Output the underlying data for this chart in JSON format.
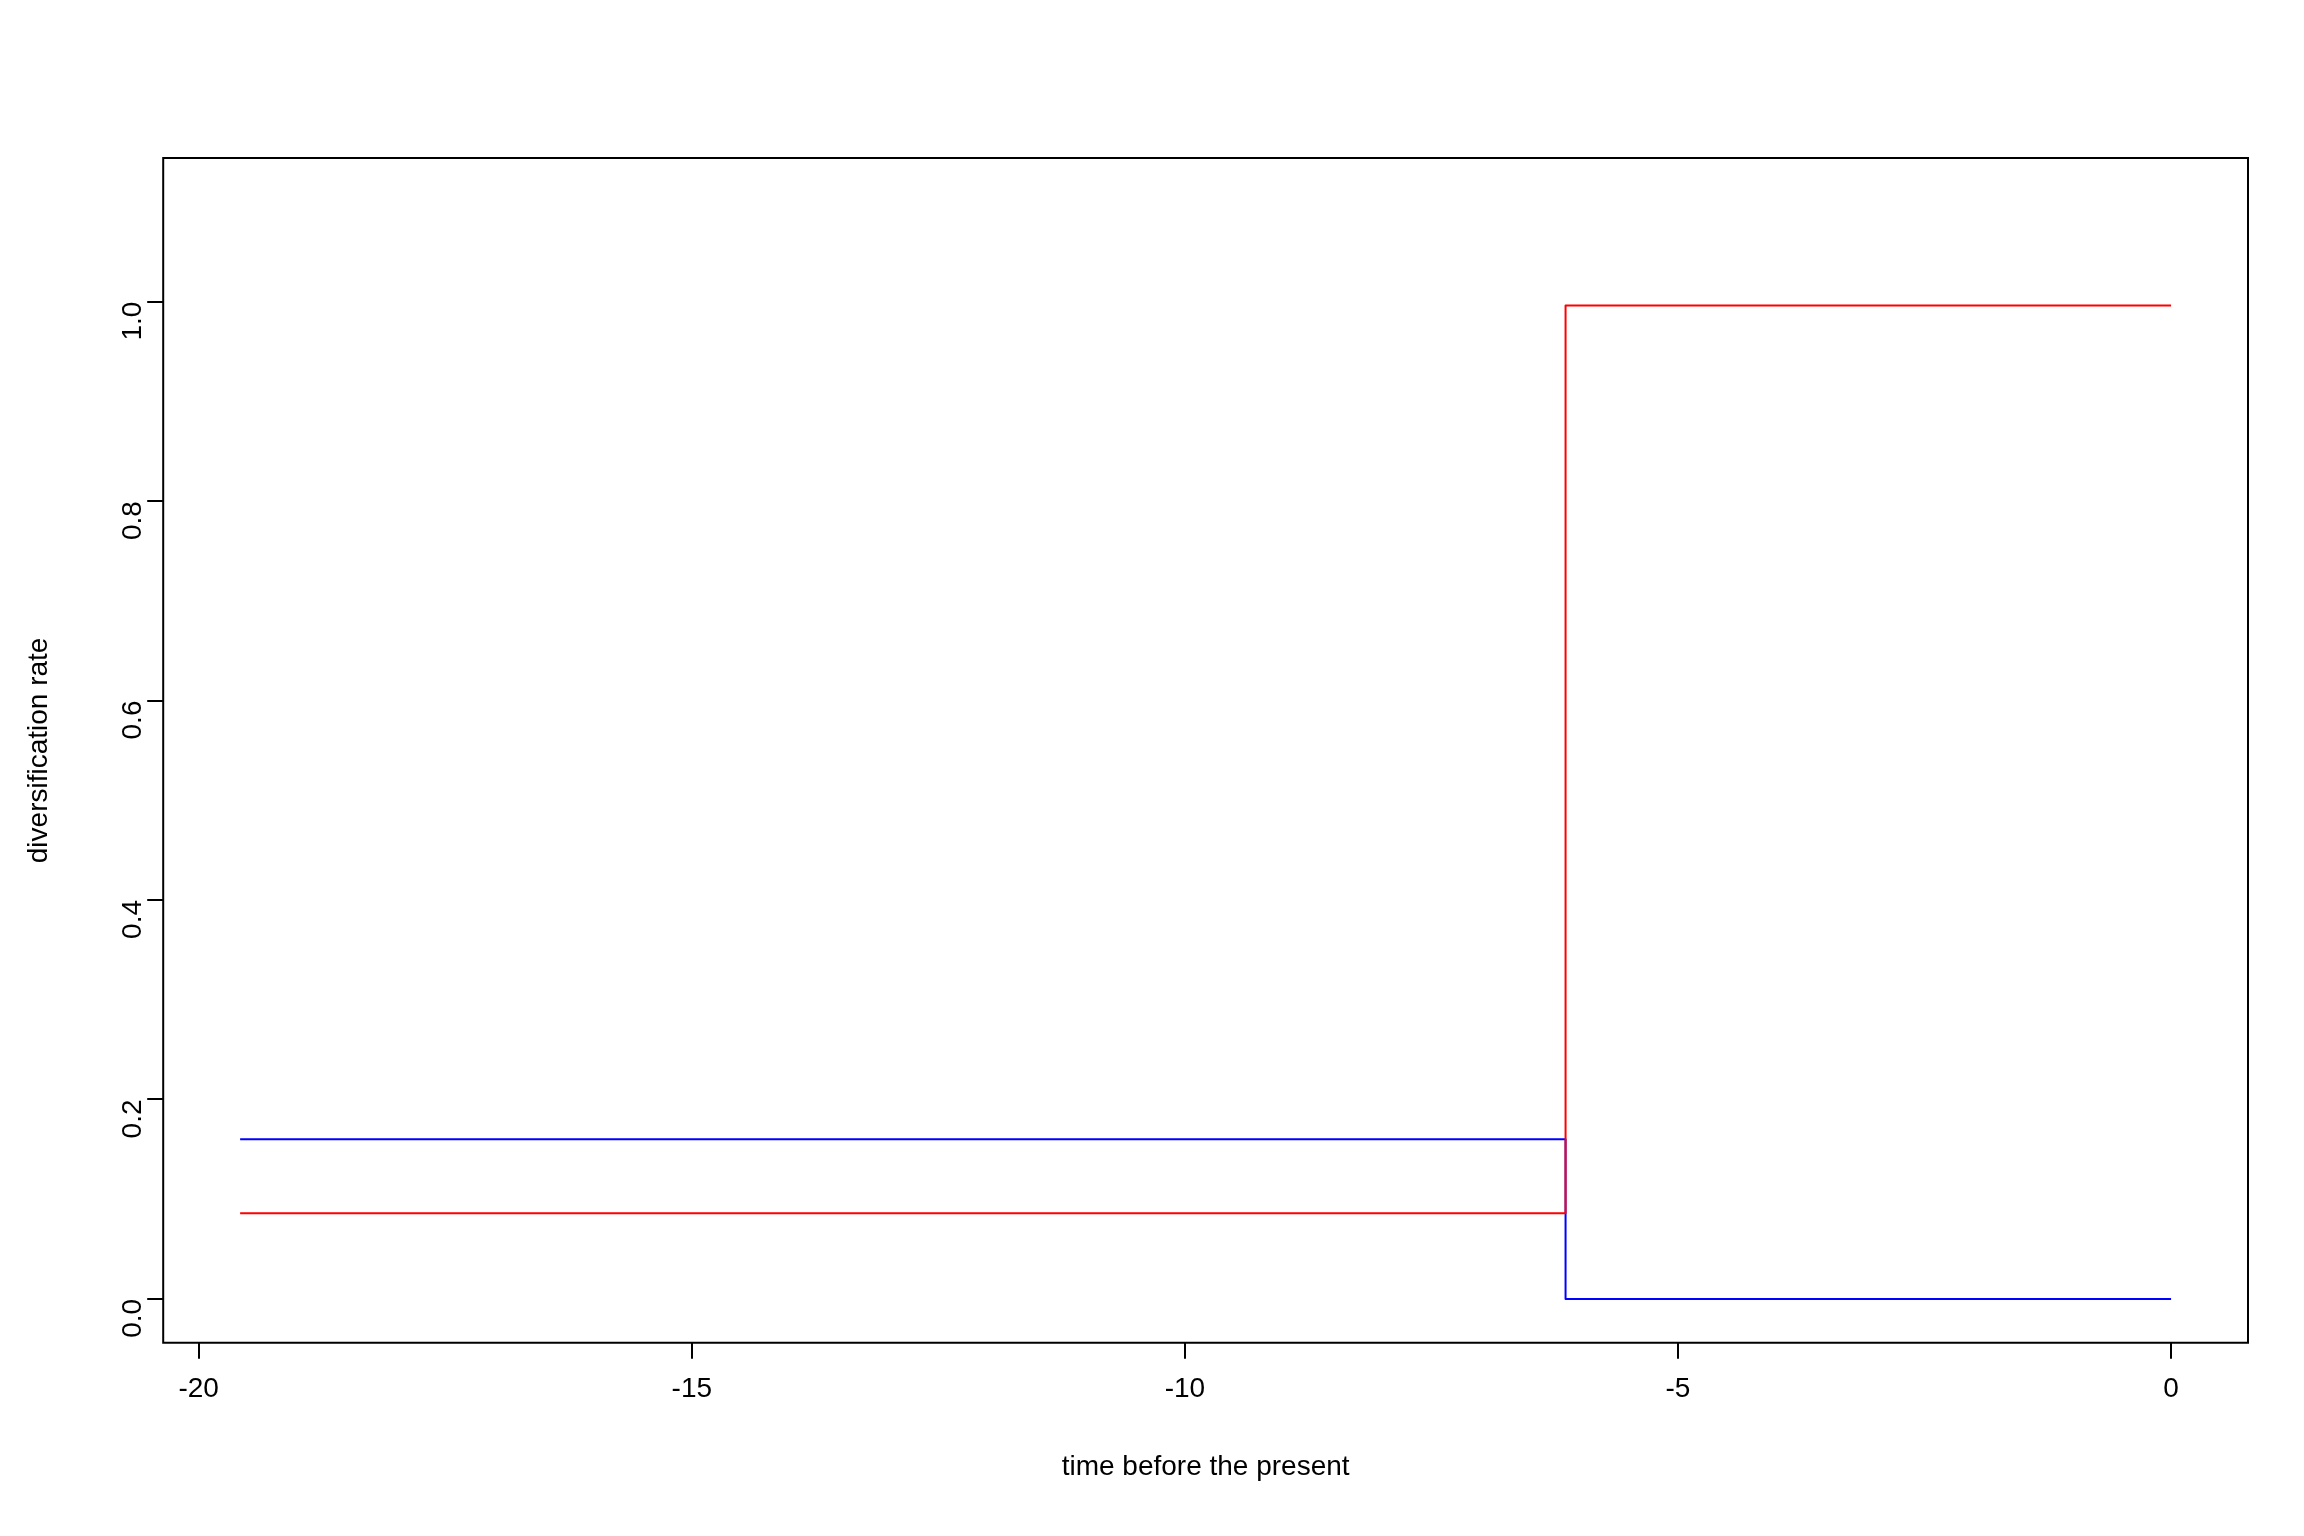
{
  "chart_data": {
    "type": "step",
    "xlabel": "time before the present",
    "ylabel": "diversification rate",
    "series": [
      {
        "color": "#ff0000",
        "x": [
          -19.58,
          -6.14,
          0
        ],
        "values": [
          0.086,
          0.996,
          0.996
        ]
      },
      {
        "color": "#0000ff",
        "x": [
          -19.58,
          -6.14,
          0
        ],
        "values": [
          0.16,
          0,
          0
        ]
      }
    ],
    "xlim": [
      -20.36,
      0.78
    ],
    "xticks": [
      -20,
      -15,
      -10,
      -5,
      0
    ],
    "ylim": [
      -0.044,
      1.144
    ],
    "yticks": [
      {
        "value": 0,
        "label": "0.0"
      },
      0.2,
      0.4,
      0.6,
      0.8,
      {
        "value": 1,
        "label": "1.0"
      }
    ],
    "grid": false,
    "legend": false,
    "marker": "none",
    "line_style": "solid"
  }
}
